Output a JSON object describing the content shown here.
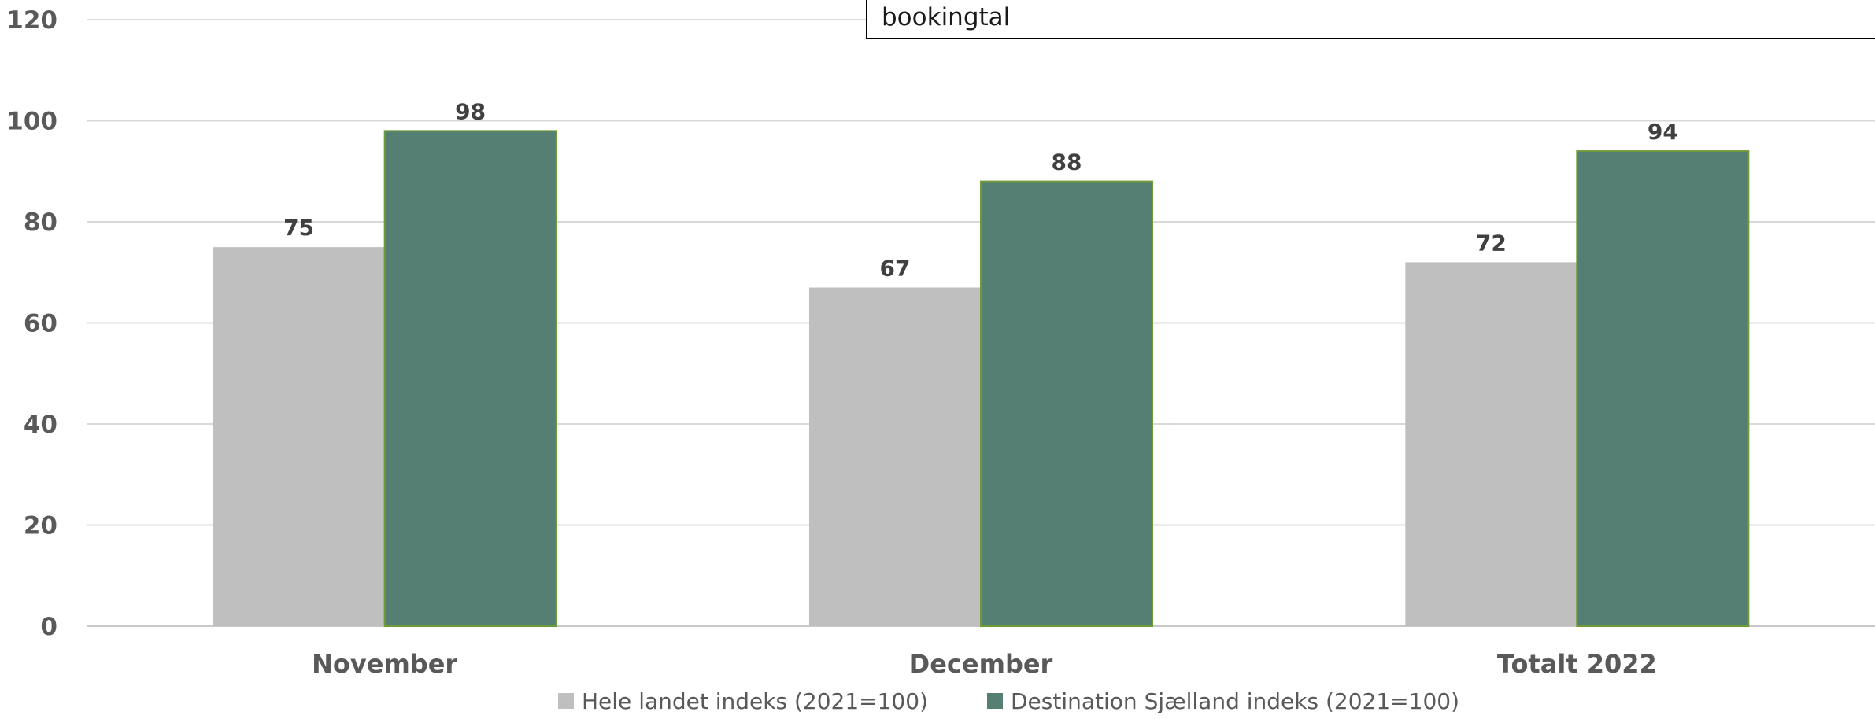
{
  "annotation": {
    "text": "bookingtal"
  },
  "chart_data": {
    "type": "bar",
    "categories": [
      "November",
      "December",
      "Totalt 2022"
    ],
    "series": [
      {
        "name": "Hele landet indeks (2021=100)",
        "values": [
          75,
          67,
          72
        ],
        "color": "#bfbfbf"
      },
      {
        "name": "Destination Sjælland indeks (2021=100)",
        "values": [
          98,
          88,
          94
        ],
        "color": "#557f73"
      }
    ],
    "ylim": [
      0,
      120
    ],
    "yticks": [
      0,
      20,
      40,
      60,
      80,
      100,
      120
    ],
    "grid": true,
    "legend": "bottom",
    "data_labels": true,
    "title": "",
    "xlabel": "",
    "ylabel": ""
  }
}
